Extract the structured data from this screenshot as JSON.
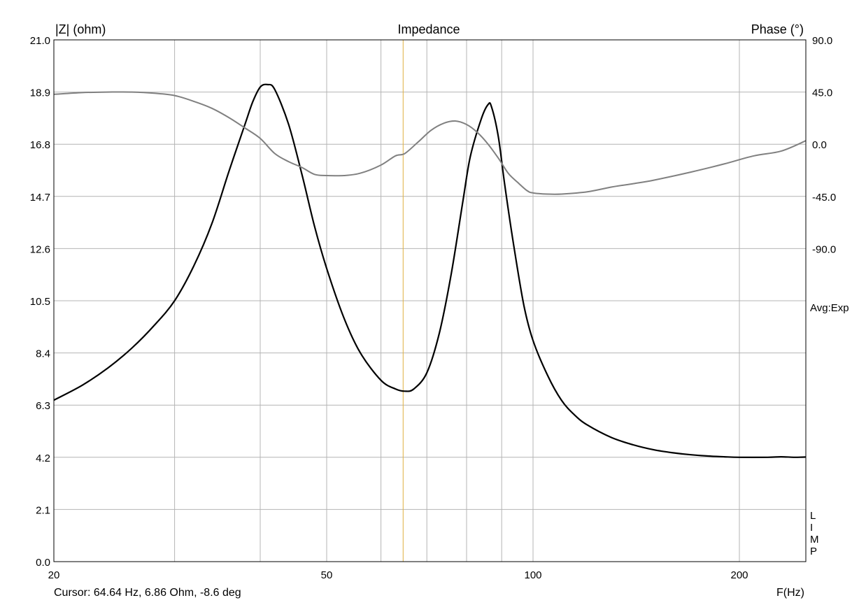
{
  "chart_data": {
    "type": "line",
    "title": "Impedance",
    "ylabel_left": "|Z| (ohm)",
    "ylabel_right": "Phase (°)",
    "xlabel": "F(Hz)",
    "x_scale": "log",
    "xlim": [
      20,
      250
    ],
    "ylim_left": [
      0.0,
      21.0
    ],
    "ylim_right_top": 90.0,
    "x_ticks": [
      {
        "value": 20,
        "label": "20"
      },
      {
        "value": 50,
        "label": "50"
      },
      {
        "value": 100,
        "label": "100"
      },
      {
        "value": 200,
        "label": "200"
      }
    ],
    "x_gridlines": [
      20,
      30,
      40,
      50,
      60,
      70,
      80,
      90,
      100,
      200,
      250
    ],
    "y_left_ticks": [
      {
        "value": 0.0,
        "label": "0.0"
      },
      {
        "value": 2.1,
        "label": "2.1"
      },
      {
        "value": 4.2,
        "label": "4.2"
      },
      {
        "value": 6.3,
        "label": "6.3"
      },
      {
        "value": 8.4,
        "label": "8.4"
      },
      {
        "value": 10.5,
        "label": "10.5"
      },
      {
        "value": 12.6,
        "label": "12.6"
      },
      {
        "value": 14.7,
        "label": "14.7"
      },
      {
        "value": 16.8,
        "label": "16.8"
      },
      {
        "value": 18.9,
        "label": "18.9"
      },
      {
        "value": 21.0,
        "label": "21.0"
      }
    ],
    "y_right_ticks": [
      {
        "value": 90.0,
        "label": "90.0"
      },
      {
        "value": 45.0,
        "label": "45.0"
      },
      {
        "value": 0.0,
        "label": "0.0"
      },
      {
        "value": -45.0,
        "label": "-45.0"
      },
      {
        "value": -90.0,
        "label": "-90.0"
      }
    ],
    "grid": true,
    "series": [
      {
        "key": "impedance",
        "color": "#000000",
        "x": [
          20,
          22,
          24,
          26,
          28,
          30,
          32,
          34,
          36,
          38,
          39,
          40,
          41,
          42,
          44,
          46,
          48,
          50,
          53,
          56,
          60,
          63,
          65,
          67,
          70,
          73,
          76,
          79,
          81,
          84,
          86,
          87,
          89,
          91,
          94,
          97,
          100,
          105,
          110,
          115,
          120,
          130,
          140,
          150,
          160,
          170,
          180,
          190,
          200,
          220,
          230,
          240,
          250
        ],
        "values": [
          6.5,
          7.1,
          7.8,
          8.6,
          9.5,
          10.5,
          11.9,
          13.6,
          15.7,
          17.6,
          18.5,
          19.1,
          19.2,
          19.0,
          17.6,
          15.6,
          13.5,
          11.8,
          9.8,
          8.4,
          7.3,
          6.95,
          6.86,
          6.95,
          7.6,
          9.2,
          11.6,
          14.5,
          16.3,
          17.8,
          18.4,
          18.3,
          17.1,
          15.1,
          12.5,
          10.3,
          8.9,
          7.5,
          6.5,
          5.9,
          5.5,
          5.0,
          4.7,
          4.5,
          4.38,
          4.3,
          4.25,
          4.22,
          4.2,
          4.2,
          4.22,
          4.2,
          4.21
        ]
      },
      {
        "key": "phase",
        "color": "#808080",
        "x": [
          20,
          22,
          24,
          26,
          28,
          30,
          32,
          34,
          36,
          38,
          40,
          42,
          44,
          46,
          48,
          50,
          53,
          56,
          60,
          63,
          65,
          68,
          71,
          74,
          77,
          80,
          83,
          86,
          89,
          92,
          95,
          98,
          100,
          105,
          110,
          120,
          130,
          140,
          150,
          170,
          190,
          210,
          230,
          250
        ],
        "values": [
          43,
          44.5,
          45,
          45,
          44,
          42,
          37,
          31,
          23,
          14,
          5,
          -8,
          -15,
          -20,
          -26,
          -27,
          -27,
          -25,
          -18,
          -10,
          -8,
          2,
          12,
          18,
          20,
          17,
          10,
          0,
          -12,
          -25,
          -33,
          -40,
          -42,
          -43,
          -43,
          -41,
          -37,
          -34,
          -31,
          -24,
          -17,
          -10,
          -6,
          3
        ]
      }
    ],
    "cursor": {
      "x": 64.64
    },
    "cursor_readout": "Cursor: 64.64 Hz, 6.86 Ohm, -8.6 deg",
    "side_labels": {
      "avg": "Avg:Exp",
      "mode_letters": [
        "L",
        "I",
        "M",
        "P"
      ]
    }
  }
}
